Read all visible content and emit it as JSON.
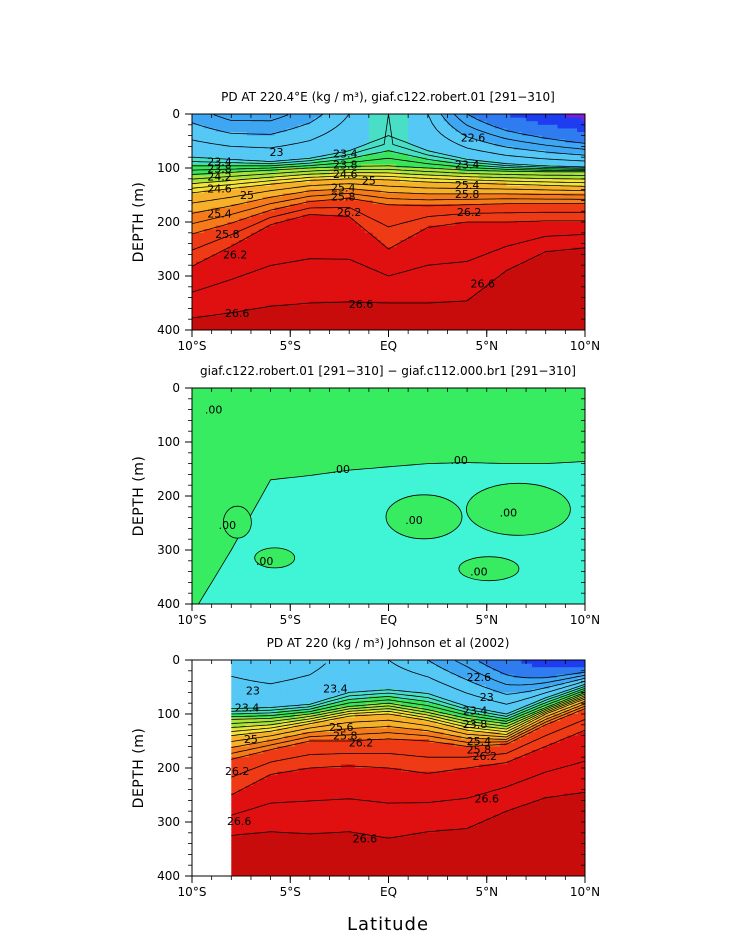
{
  "figure": {
    "xlabel": "Latitude"
  },
  "palette": {
    "levels": [
      21.8,
      22.2,
      22.6,
      23.0,
      23.4,
      23.8,
      24.2,
      24.6,
      25.0,
      25.4,
      25.8,
      26.2,
      26.6
    ],
    "colors": [
      "#7a1ed8",
      "#1e3cf0",
      "#2f7cf0",
      "#3fa6f2",
      "#55c8f5",
      "#49dfc6",
      "#3be45a",
      "#a6e43c",
      "#f2e43a",
      "#f7b02a",
      "#f47a1a",
      "#ef3a16",
      "#e01010",
      "#c80c0c"
    ],
    "diff_negative": "#40f5d6",
    "diff_positive": "#38ec62"
  },
  "chart_data": [
    {
      "type": "heatmap",
      "title": "PD AT 220.4°E (kg / m³), giaf.c122.robert.01 [291−310]",
      "ylabel": "DEPTH (m)",
      "xlabel": "",
      "xlim": [
        -10,
        10
      ],
      "ylim": [
        400,
        0
      ],
      "xticks": [
        -10,
        -5,
        0,
        5,
        10
      ],
      "xtick_labels": [
        "10°S",
        "5°S",
        "EQ",
        "5°N",
        "10°N"
      ],
      "yticks": [
        0,
        100,
        200,
        300,
        400
      ],
      "ytick_labels": [
        "0",
        "100",
        "200",
        "300",
        "400"
      ],
      "surface_density": [
        {
          "lat": -10,
          "value": 22.9
        },
        {
          "lat": -8,
          "value": 22.7
        },
        {
          "lat": -6,
          "value": 22.7
        },
        {
          "lat": -4,
          "value": 22.9
        },
        {
          "lat": -2,
          "value": 23.2
        },
        {
          "lat": 0,
          "value": 23.6
        },
        {
          "lat": 2,
          "value": 23.2
        },
        {
          "lat": 4,
          "value": 22.6
        },
        {
          "lat": 6,
          "value": 22.2
        },
        {
          "lat": 8,
          "value": 21.9
        },
        {
          "lat": 10,
          "value": 21.6
        }
      ],
      "isopycnal_depths": {
        "lat": [
          -10,
          -8,
          -6,
          -4,
          -2,
          0,
          2,
          4,
          6,
          8,
          10
        ],
        "series": [
          {
            "level": 23.4,
            "depth": [
              80,
              84,
              88,
              82,
              68,
              40,
              68,
              84,
              92,
              96,
              98
            ]
          },
          {
            "level": 24.2,
            "depth": [
              112,
              108,
              104,
              100,
              97,
              96,
              100,
              104,
              106,
              107,
              107
            ]
          },
          {
            "level": 25.0,
            "depth": [
              146,
              138,
              130,
              123,
              120,
              122,
              126,
              128,
              130,
              132,
              134
            ]
          },
          {
            "level": 25.8,
            "depth": [
              222,
              202,
              178,
              162,
              156,
              168,
              170,
              168,
              166,
              166,
              166
            ]
          },
          {
            "level": 26.2,
            "depth": [
              282,
              245,
              205,
              186,
              190,
              250,
              210,
              200,
              200,
              198,
              198
            ]
          },
          {
            "level": 26.6,
            "depth": [
              378,
              368,
              356,
              350,
              348,
              350,
              350,
              346,
              290,
              255,
              248
            ]
          }
        ]
      },
      "contour_labels": [
        {
          "text": "23",
          "lat": -5.7,
          "depth": 72
        },
        {
          "text": "23.4",
          "lat": -8.6,
          "depth": 90
        },
        {
          "text": "23.8",
          "lat": -8.6,
          "depth": 103
        },
        {
          "text": "24.2",
          "lat": -8.6,
          "depth": 118
        },
        {
          "text": "24.6",
          "lat": -8.6,
          "depth": 140
        },
        {
          "text": "25",
          "lat": -7.2,
          "depth": 152
        },
        {
          "text": "25.4",
          "lat": -8.6,
          "depth": 186
        },
        {
          "text": "25.8",
          "lat": -8.2,
          "depth": 224
        },
        {
          "text": "26.2",
          "lat": -7.8,
          "depth": 262
        },
        {
          "text": "26.6",
          "lat": -7.7,
          "depth": 370
        },
        {
          "text": "23.4",
          "lat": -2.2,
          "depth": 75
        },
        {
          "text": "23.8",
          "lat": -2.2,
          "depth": 95
        },
        {
          "text": "24.6",
          "lat": -2.2,
          "depth": 113
        },
        {
          "text": "25",
          "lat": -1.0,
          "depth": 125
        },
        {
          "text": "25.4",
          "lat": -2.3,
          "depth": 138
        },
        {
          "text": "25.8",
          "lat": -2.3,
          "depth": 155
        },
        {
          "text": "26.2",
          "lat": -2.0,
          "depth": 183
        },
        {
          "text": "26.6",
          "lat": -1.4,
          "depth": 354
        },
        {
          "text": "22.6",
          "lat": 4.3,
          "depth": 45
        },
        {
          "text": "23.4",
          "lat": 4.0,
          "depth": 95
        },
        {
          "text": "25.4",
          "lat": 4.0,
          "depth": 133
        },
        {
          "text": "25.8",
          "lat": 4.0,
          "depth": 150
        },
        {
          "text": "26.2",
          "lat": 4.1,
          "depth": 183
        },
        {
          "text": "26.6",
          "lat": 4.8,
          "depth": 316
        }
      ]
    },
    {
      "type": "heatmap",
      "title": "giaf.c122.robert.01 [291−310] − giaf.c112.000.br1 [291−310]",
      "ylabel": "DEPTH (m)",
      "xlabel": "",
      "xlim": [
        -10,
        10
      ],
      "ylim": [
        400,
        0
      ],
      "xticks": [
        -10,
        -5,
        0,
        5,
        10
      ],
      "xtick_labels": [
        "10°S",
        "5°S",
        "EQ",
        "5°N",
        "10°N"
      ],
      "yticks": [
        0,
        100,
        200,
        300,
        400
      ],
      "ytick_labels": [
        "0",
        "100",
        "200",
        "300",
        "400"
      ],
      "zero_contour_depth": {
        "lat": [
          -10,
          -8,
          -6,
          -4,
          -2,
          0,
          2,
          4,
          6,
          8,
          10
        ],
        "depth": [
          420,
          300,
          170,
          162,
          152,
          146,
          140,
          138,
          140,
          140,
          136
        ]
      },
      "contour_labels": [
        {
          "text": ".00",
          "lat": -8.9,
          "depth": 42
        },
        {
          "text": ".00",
          "lat": -2.4,
          "depth": 152
        },
        {
          "text": ".00",
          "lat": 3.6,
          "depth": 135
        },
        {
          "text": ".00",
          "lat": -8.2,
          "depth": 256
        },
        {
          "text": ".00",
          "lat": -6.3,
          "depth": 322
        },
        {
          "text": ".00",
          "lat": 1.3,
          "depth": 246
        },
        {
          "text": ".00",
          "lat": 6.1,
          "depth": 232
        },
        {
          "text": ".00",
          "lat": 4.6,
          "depth": 342
        }
      ]
    },
    {
      "type": "heatmap",
      "title": "PD AT 220 (kg / m³) Johnson et al (2002)",
      "ylabel": "DEPTH (m)",
      "xlabel": "Latitude",
      "xlim": [
        -10,
        10
      ],
      "ylim": [
        400,
        0
      ],
      "data_xlim": [
        -8,
        10
      ],
      "data_ylim": [
        0,
        400
      ],
      "xticks": [
        -10,
        -5,
        0,
        5,
        10
      ],
      "xtick_labels": [
        "10°S",
        "5°S",
        "EQ",
        "5°N",
        "10°N"
      ],
      "yticks": [
        0,
        100,
        200,
        300,
        400
      ],
      "ytick_labels": [
        "0",
        "100",
        "200",
        "300",
        "400"
      ],
      "surface_density": [
        {
          "lat": -8,
          "value": 23.1
        },
        {
          "lat": -6,
          "value": 23.0
        },
        {
          "lat": -4,
          "value": 23.1
        },
        {
          "lat": -2,
          "value": 23.3
        },
        {
          "lat": 0,
          "value": 23.2
        },
        {
          "lat": 2,
          "value": 23.0
        },
        {
          "lat": 4,
          "value": 22.7
        },
        {
          "lat": 6,
          "value": 22.3
        },
        {
          "lat": 8,
          "value": 21.9
        },
        {
          "lat": 10,
          "value": 21.8
        }
      ],
      "isopycnal_depths": {
        "lat": [
          -8,
          -6,
          -4,
          -2,
          0,
          2,
          4,
          6,
          8,
          10
        ],
        "series": [
          {
            "level": 23.4,
            "depth": [
              90,
              88,
              82,
              60,
              55,
              62,
              86,
              100,
              70,
              45
            ]
          },
          {
            "level": 24.2,
            "depth": [
              110,
              108,
              100,
              86,
              80,
              92,
              108,
              118,
              88,
              60
            ]
          },
          {
            "level": 25.0,
            "depth": [
              140,
              132,
              118,
              104,
              100,
              112,
              130,
              138,
              100,
              72
            ]
          },
          {
            "level": 25.8,
            "depth": [
              184,
              166,
              150,
              150,
              146,
              150,
              160,
              156,
              120,
              90
            ]
          },
          {
            "level": 26.2,
            "depth": [
              250,
              212,
              200,
              196,
              200,
              210,
              200,
              190,
              160,
              130
            ]
          },
          {
            "level": 26.6,
            "depth": [
              325,
              318,
              322,
              318,
              330,
              318,
              312,
              280,
              255,
              245
            ]
          }
        ]
      },
      "contour_labels": [
        {
          "text": "23",
          "lat": -6.9,
          "depth": 58
        },
        {
          "text": "23.4",
          "lat": -7.2,
          "depth": 90
        },
        {
          "text": "25",
          "lat": -7.0,
          "depth": 148
        },
        {
          "text": "26.2",
          "lat": -7.7,
          "depth": 207
        },
        {
          "text": "26.6",
          "lat": -7.6,
          "depth": 300
        },
        {
          "text": "23.4",
          "lat": -2.7,
          "depth": 55
        },
        {
          "text": "25.6",
          "lat": -2.4,
          "depth": 126
        },
        {
          "text": "25.8",
          "lat": -2.2,
          "depth": 142
        },
        {
          "text": "26.2",
          "lat": -1.4,
          "depth": 155
        },
        {
          "text": "26.6",
          "lat": -1.2,
          "depth": 332
        },
        {
          "text": "22.6",
          "lat": 4.6,
          "depth": 33
        },
        {
          "text": "23",
          "lat": 5.0,
          "depth": 70
        },
        {
          "text": "23.4",
          "lat": 4.4,
          "depth": 95
        },
        {
          "text": "23.8",
          "lat": 4.4,
          "depth": 120
        },
        {
          "text": "25.4",
          "lat": 4.6,
          "depth": 152
        },
        {
          "text": "25.8",
          "lat": 4.6,
          "depth": 168
        },
        {
          "text": "26.2",
          "lat": 4.9,
          "depth": 180
        },
        {
          "text": "26.6",
          "lat": 5.0,
          "depth": 258
        }
      ]
    }
  ]
}
